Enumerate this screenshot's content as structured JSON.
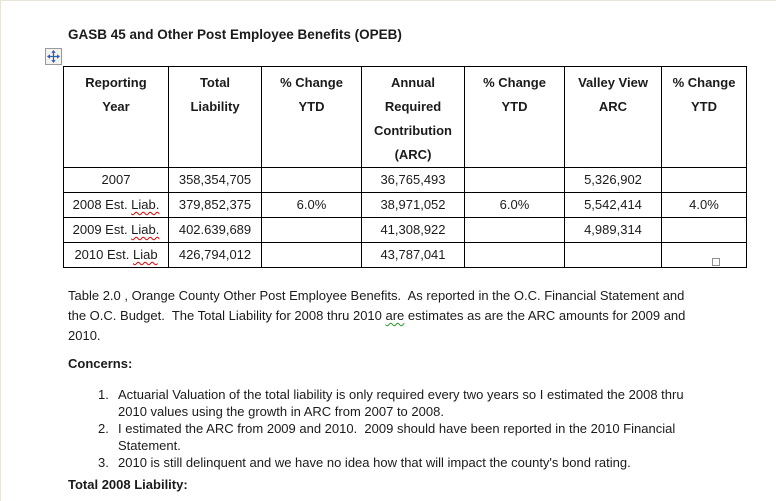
{
  "document": {
    "title": "GASB 45 and Other Post Employee Benefits (OPEB)",
    "caption_segments": [
      {
        "text": "Table 2.0 , Orange County Other Post Employee Benefits.  As reported in the O.C. Financial Statement and the O.C. Budget.  The Total Liability for 2008 thru 2010 "
      },
      {
        "text": "are",
        "mark": "grammar"
      },
      {
        "text": " estimates as are the ARC amounts for 2009 and 2010."
      }
    ],
    "concerns_heading": "Concerns:",
    "concerns_items": [
      "Actuarial Valuation of the total liability is only required every two years so I estimated the 2008 thru 2010 values using the growth in ARC from 2007 to 2008.",
      "I estimated the ARC from 2009 and 2010.  2009 should have been reported in the 2010 Financial Statement.",
      "2010 is still delinquent and we have no idea how that will impact the county's bond rating."
    ],
    "footer_heading": "Total 2008 Liability:"
  },
  "table": {
    "columns": [
      {
        "lines": [
          "Reporting",
          "Year"
        ]
      },
      {
        "lines": [
          "Total",
          "Liability"
        ]
      },
      {
        "lines": [
          "% Change",
          "YTD"
        ]
      },
      {
        "lines": [
          "Annual",
          "Required",
          "Contribution",
          "(ARC)"
        ]
      },
      {
        "lines": [
          "% Change",
          "YTD"
        ]
      },
      {
        "lines": [
          "Valley View",
          "ARC"
        ]
      },
      {
        "lines": [
          "% Change",
          "YTD"
        ]
      }
    ],
    "rows": [
      [
        "2007",
        "358,354,705",
        "",
        "36,765,493",
        "",
        "5,326,902",
        ""
      ],
      [
        "2008 Est. Liab.",
        "379,852,375",
        "6.0%",
        "38,971,052",
        "6.0%",
        "5,542,414",
        "4.0%"
      ],
      [
        "2009 Est. Liab.",
        "402.639,689",
        "",
        "41,308,922",
        "",
        "4,989,314",
        ""
      ],
      [
        "2010 Est. Liab",
        "426,794,012",
        "",
        "43,787,041",
        "",
        "",
        ""
      ]
    ],
    "misspelled_pattern": "Liab\\.?"
  },
  "icons": {
    "move_handle": "four-way-arrow",
    "resize_handle": "resize-square"
  },
  "colors": {
    "spelling_underline": "#dd0000",
    "grammar_underline": "#1f9a1f",
    "table_border": "#000000",
    "handle_arrow": "#2b5fb0",
    "text": "#1b1b1b"
  }
}
